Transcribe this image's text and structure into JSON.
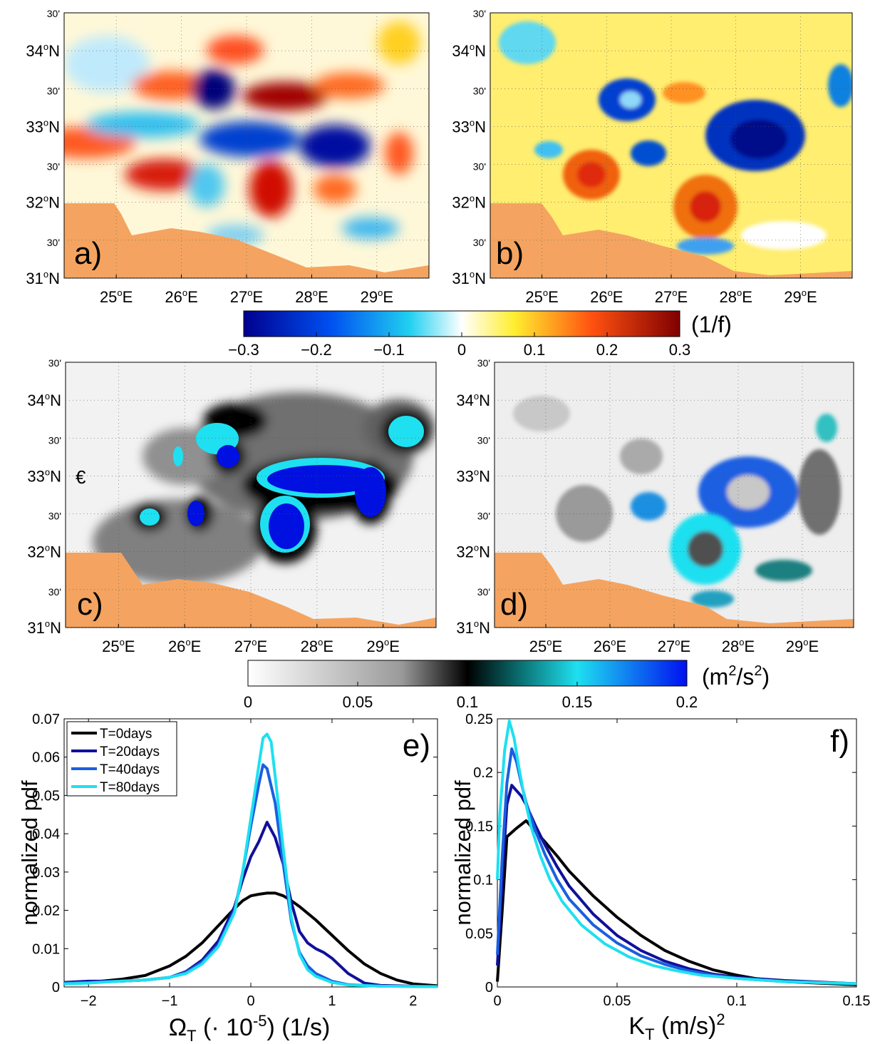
{
  "maps": {
    "lat_labels": [
      {
        "main": "34",
        "deg": "o",
        "suf": "N",
        "lat": 34.0
      },
      {
        "main": "30'",
        "deg": "",
        "suf": "",
        "lat": 33.5
      },
      {
        "main": "33",
        "deg": "o",
        "suf": "N",
        "lat": 33.0
      },
      {
        "main": "30'",
        "deg": "",
        "suf": "",
        "lat": 32.5
      },
      {
        "main": "32",
        "deg": "o",
        "suf": "N",
        "lat": 32.0
      },
      {
        "main": "30'",
        "deg": "",
        "suf": "",
        "lat": 31.5
      },
      {
        "main": "31",
        "deg": "o",
        "suf": "N",
        "lat": 31.0
      }
    ],
    "top_lat_label": "30'",
    "lon_labels": [
      {
        "main": "25",
        "deg": "o",
        "suf": "E",
        "lon": 25
      },
      {
        "main": "26",
        "deg": "o",
        "suf": "E",
        "lon": 26
      },
      {
        "main": "27",
        "deg": "o",
        "suf": "E",
        "lon": 27
      },
      {
        "main": "28",
        "deg": "o",
        "suf": "E",
        "lon": 28
      },
      {
        "main": "29",
        "deg": "o",
        "suf": "E",
        "lon": 29
      }
    ],
    "lat_range": [
      31.0,
      34.5
    ],
    "lon_range": [
      24.2,
      29.8
    ],
    "panels": [
      {
        "id": "a",
        "label": "a)",
        "field": "vorticity"
      },
      {
        "id": "b",
        "label": "b)",
        "field": "vorticity"
      },
      {
        "id": "c",
        "label": "c)",
        "field": "kinetic_energy",
        "marker": "€"
      },
      {
        "id": "d",
        "label": "d)",
        "field": "kinetic_energy"
      }
    ],
    "land_color": "#f4a460"
  },
  "colorbars": {
    "vorticity": {
      "unit": "(1/f)",
      "ticks": [
        "−0.3",
        "−0.2",
        "−0.1",
        "0",
        "0.1",
        "0.2",
        "0.3"
      ],
      "range": [
        -0.3,
        0.3
      ]
    },
    "kinetic_energy": {
      "unit_base": "(m",
      "unit_sup1": "2",
      "unit_mid": "/s",
      "unit_sup2": "2",
      "unit_end": ")",
      "ticks": [
        "0",
        "0.05",
        "0.1",
        "0.15",
        "0.2"
      ],
      "range": [
        0,
        0.2
      ]
    }
  },
  "chart_data": [
    {
      "panel": "e)",
      "type": "line",
      "ylabel": "normalized pdf",
      "xlabel_main": "Ω",
      "xlabel_sub": "T",
      "xlabel_mid": " (· 10",
      "xlabel_sup": "-5",
      "xlabel_end": ") (1/s)",
      "xlim": [
        -2.3,
        2.3
      ],
      "ylim": [
        0,
        0.07
      ],
      "xticks": [
        "−2",
        "−1",
        "0",
        "1",
        "2"
      ],
      "xtick_values": [
        -2,
        -1,
        0,
        1,
        2
      ],
      "yticks": [
        "0",
        "0.01",
        "0.02",
        "0.03",
        "0.04",
        "0.05",
        "0.06",
        "0.07"
      ],
      "ytick_values": [
        0,
        0.01,
        0.02,
        0.03,
        0.04,
        0.05,
        0.06,
        0.07
      ],
      "legend_position": "top-left",
      "series": [
        {
          "name": "T=0days",
          "color": "#000000",
          "x": [
            -2.3,
            -2.0,
            -1.6,
            -1.3,
            -1.0,
            -0.8,
            -0.6,
            -0.4,
            -0.2,
            -0.1,
            0.0,
            0.1,
            0.2,
            0.3,
            0.4,
            0.5,
            0.6,
            0.8,
            1.0,
            1.2,
            1.4,
            1.6,
            1.8,
            2.0,
            2.3
          ],
          "y": [
            0.0008,
            0.0012,
            0.002,
            0.003,
            0.0055,
            0.008,
            0.0115,
            0.016,
            0.0205,
            0.0225,
            0.0238,
            0.0242,
            0.0245,
            0.0245,
            0.0238,
            0.0225,
            0.021,
            0.0175,
            0.0135,
            0.0095,
            0.006,
            0.0035,
            0.0018,
            0.0008,
            0.0003
          ]
        },
        {
          "name": "T=20days",
          "color": "#10109a",
          "x": [
            -2.3,
            -2.0,
            -1.6,
            -1.3,
            -1.0,
            -0.8,
            -0.6,
            -0.4,
            -0.2,
            -0.1,
            0.0,
            0.1,
            0.2,
            0.3,
            0.4,
            0.5,
            0.6,
            0.7,
            0.8,
            0.9,
            1.0,
            1.2,
            1.4,
            1.6,
            2.0,
            2.3
          ],
          "y": [
            0.0012,
            0.0015,
            0.0015,
            0.0018,
            0.0025,
            0.004,
            0.007,
            0.012,
            0.021,
            0.028,
            0.034,
            0.038,
            0.043,
            0.039,
            0.032,
            0.022,
            0.0145,
            0.0115,
            0.01,
            0.009,
            0.0075,
            0.0035,
            0.001,
            0.0004,
            0.0002,
            0.0001
          ]
        },
        {
          "name": "T=40days",
          "color": "#1a5fe0",
          "x": [
            -2.3,
            -2.0,
            -1.6,
            -1.3,
            -1.0,
            -0.8,
            -0.6,
            -0.4,
            -0.2,
            -0.1,
            0.0,
            0.1,
            0.15,
            0.2,
            0.3,
            0.4,
            0.5,
            0.6,
            0.7,
            0.8,
            1.0,
            1.2,
            1.6,
            2.3
          ],
          "y": [
            0.001,
            0.0012,
            0.0015,
            0.0018,
            0.0025,
            0.0038,
            0.0065,
            0.011,
            0.02,
            0.03,
            0.042,
            0.053,
            0.058,
            0.057,
            0.048,
            0.032,
            0.017,
            0.009,
            0.0055,
            0.0035,
            0.0015,
            0.0006,
            0.0002,
            0.0001
          ]
        },
        {
          "name": "T=80days",
          "color": "#1ee0f0",
          "x": [
            -2.3,
            -2.0,
            -1.6,
            -1.3,
            -1.0,
            -0.8,
            -0.6,
            -0.4,
            -0.2,
            -0.1,
            0.0,
            0.1,
            0.15,
            0.2,
            0.25,
            0.3,
            0.4,
            0.5,
            0.6,
            0.7,
            0.8,
            1.0,
            1.2,
            1.6,
            2.3
          ],
          "y": [
            0.0008,
            0.001,
            0.0015,
            0.0018,
            0.0025,
            0.0035,
            0.006,
            0.0105,
            0.0195,
            0.03,
            0.044,
            0.058,
            0.065,
            0.066,
            0.064,
            0.055,
            0.036,
            0.018,
            0.0085,
            0.0045,
            0.0028,
            0.0012,
            0.0005,
            0.0002,
            0.0001
          ]
        }
      ]
    },
    {
      "panel": "f)",
      "type": "line",
      "ylabel": "normalized pdf",
      "xlabel_main": "K",
      "xlabel_sub": "T",
      "xlabel_mid": " (m/s)",
      "xlabel_sup": "2",
      "xlabel_end": "",
      "xlim": [
        0,
        0.15
      ],
      "ylim": [
        0,
        0.25
      ],
      "xticks": [
        "0",
        "0.05",
        "0.1",
        "0.15"
      ],
      "xtick_values": [
        0,
        0.05,
        0.1,
        0.15
      ],
      "yticks": [
        "0",
        "0.05",
        "0.1",
        "0.15",
        "0.2",
        "0.25"
      ],
      "ytick_values": [
        0,
        0.05,
        0.1,
        0.15,
        0.2,
        0.25
      ],
      "series": [
        {
          "name": "T=0days",
          "color": "#000000",
          "x": [
            0.0,
            0.002,
            0.004,
            0.008,
            0.012,
            0.016,
            0.02,
            0.025,
            0.03,
            0.04,
            0.05,
            0.06,
            0.07,
            0.08,
            0.09,
            0.1,
            0.11,
            0.12,
            0.13,
            0.14,
            0.15
          ],
          "y": [
            0.005,
            0.07,
            0.14,
            0.148,
            0.155,
            0.145,
            0.135,
            0.122,
            0.108,
            0.085,
            0.065,
            0.048,
            0.034,
            0.024,
            0.016,
            0.011,
            0.007,
            0.005,
            0.004,
            0.003,
            0.002
          ]
        },
        {
          "name": "T=20days",
          "color": "#10109a",
          "x": [
            0.0,
            0.002,
            0.004,
            0.006,
            0.008,
            0.01,
            0.012,
            0.016,
            0.02,
            0.025,
            0.03,
            0.04,
            0.05,
            0.06,
            0.07,
            0.08,
            0.09,
            0.1,
            0.12,
            0.15
          ],
          "y": [
            0.02,
            0.1,
            0.17,
            0.188,
            0.183,
            0.178,
            0.17,
            0.15,
            0.132,
            0.112,
            0.094,
            0.068,
            0.048,
            0.034,
            0.024,
            0.017,
            0.012,
            0.009,
            0.006,
            0.003
          ]
        },
        {
          "name": "T=40days",
          "color": "#1a5fe0",
          "x": [
            0.0,
            0.002,
            0.004,
            0.006,
            0.008,
            0.01,
            0.012,
            0.016,
            0.02,
            0.025,
            0.03,
            0.04,
            0.05,
            0.06,
            0.07,
            0.08,
            0.09,
            0.1,
            0.12,
            0.15
          ],
          "y": [
            0.03,
            0.12,
            0.19,
            0.222,
            0.21,
            0.19,
            0.172,
            0.145,
            0.123,
            0.1,
            0.082,
            0.058,
            0.041,
            0.029,
            0.021,
            0.015,
            0.011,
            0.008,
            0.005,
            0.003
          ]
        },
        {
          "name": "T=80days",
          "color": "#1ee0f0",
          "x": [
            0.0,
            0.001,
            0.003,
            0.005,
            0.007,
            0.009,
            0.011,
            0.014,
            0.018,
            0.022,
            0.027,
            0.035,
            0.045,
            0.055,
            0.065,
            0.075,
            0.085,
            0.1,
            0.12,
            0.15
          ],
          "y": [
            0.1,
            0.16,
            0.22,
            0.248,
            0.232,
            0.205,
            0.18,
            0.15,
            0.122,
            0.1,
            0.08,
            0.058,
            0.04,
            0.028,
            0.02,
            0.015,
            0.011,
            0.008,
            0.005,
            0.003
          ]
        }
      ]
    }
  ]
}
